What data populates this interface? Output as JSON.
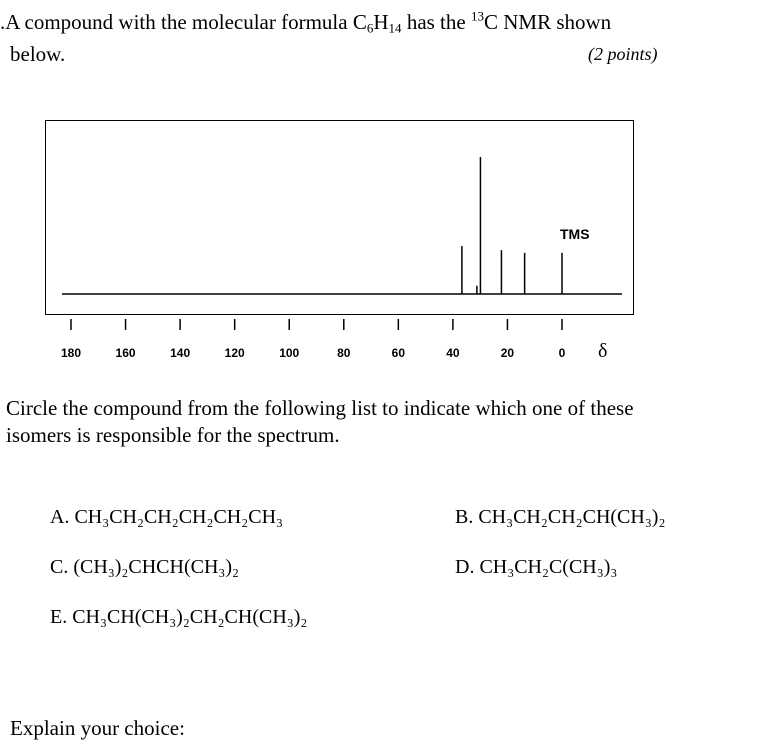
{
  "question": {
    "number_fragment": ".",
    "text_before_formula": "A compound with the molecular formula ",
    "formula_c": "C",
    "formula_c_sub": "6",
    "formula_h": "H",
    "formula_h_sub": "14",
    "text_after_formula": " has the ",
    "isotope_sup": "13",
    "text_nmr": "C NMR shown",
    "line2": "below.",
    "points": "(2 points)"
  },
  "chart_data": {
    "type": "spectrum",
    "title": "",
    "xlabel": "δ",
    "x_reversed": true,
    "xlim": [
      190,
      -10
    ],
    "ticks": [
      180,
      160,
      140,
      120,
      100,
      80,
      60,
      40,
      20,
      0
    ],
    "tick_labels": [
      "180",
      "160",
      "140",
      "120",
      "100",
      "80",
      "60",
      "40",
      "20",
      "0"
    ],
    "peaks": [
      {
        "ppm": 36.7,
        "height": 0.35
      },
      {
        "ppm": 31.2,
        "height": 0.06
      },
      {
        "ppm": 29.9,
        "height": 1.0
      },
      {
        "ppm": 22.2,
        "height": 0.32
      },
      {
        "ppm": 13.7,
        "height": 0.3
      },
      {
        "ppm": 0.0,
        "height": 0.3
      }
    ],
    "annotations": [
      {
        "text": "TMS",
        "ppm": 0.0
      }
    ]
  },
  "instructions": {
    "line1": "Circle the compound from the following list to indicate which one of these",
    "line2": "isomers is responsible for the spectrum."
  },
  "choices": {
    "a": "A. CH₃CH₂CH₂CH₂CH₂CH₃",
    "b": "B. CH₃CH₂CH₂CH(CH₃)₂",
    "c": "C. (CH₃)₂CHCH(CH₃)₂",
    "d": "D. CH₃CH₂C(CH₃)₃",
    "e": "E. CH₃CH(CH₃)₂CH₂CH(CH₃)₂"
  },
  "explain_label": "Explain your choice:"
}
